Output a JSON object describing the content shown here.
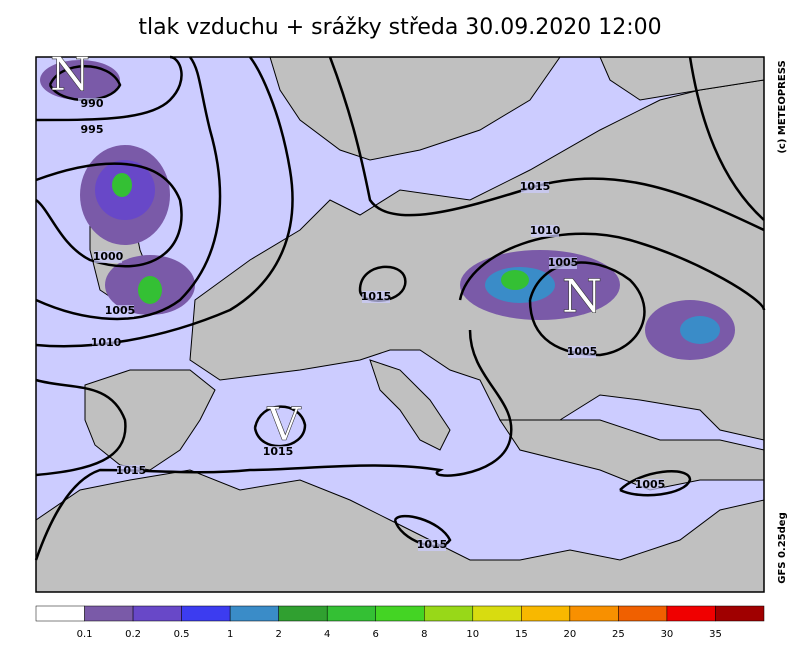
{
  "title": "tlak vzduchu + srážky  středa 30.09.2020 12:00",
  "credit": "(c) METEOPRESS",
  "model": "GFS 0.25deg",
  "pressure_centers": [
    "N",
    "N",
    "V"
  ],
  "isobar_labels": [
    990,
    995,
    1000,
    1005,
    1010,
    1015,
    1010,
    1005,
    1015,
    1005,
    1015,
    1015,
    1005,
    1015
  ],
  "legend": {
    "labels": [
      "0.1",
      "0.2",
      "0.5",
      "1",
      "2",
      "4",
      "6",
      "8",
      "10",
      "15",
      "20",
      "25",
      "30",
      "35"
    ],
    "colors": [
      "#ffffff",
      "#7a5aa8",
      "#6848c8",
      "#3c3cf0",
      "#3a8cc8",
      "#30a030",
      "#34c034",
      "#44d424",
      "#98d818",
      "#d8dc10",
      "#f8b800",
      "#f89000",
      "#f06000",
      "#f00000",
      "#a00000"
    ]
  }
}
